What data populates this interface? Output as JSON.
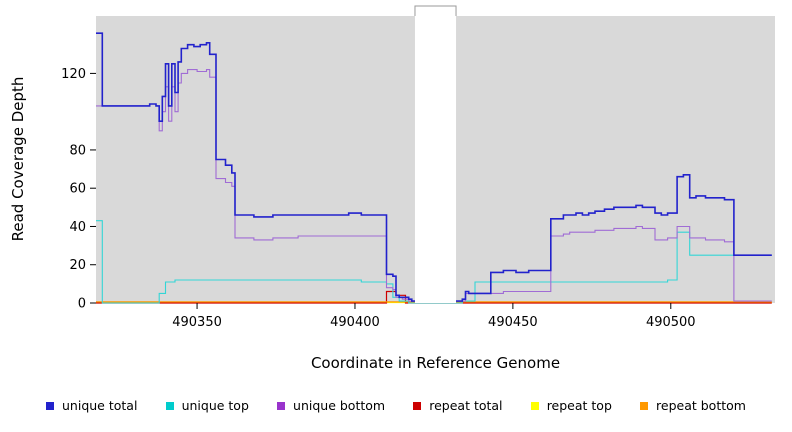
{
  "chart_data": {
    "type": "line",
    "title": "",
    "xlabel": "Coordinate in Reference Genome",
    "ylabel": "Read Coverage Depth",
    "xlim": [
      490318,
      490533
    ],
    "ylim": [
      0,
      150
    ],
    "xticks": [
      490350,
      490400,
      490450,
      490500
    ],
    "yticks": [
      0,
      20,
      40,
      60,
      80,
      120
    ],
    "panel_bg": "#d9d9d9",
    "gap_region": [
      490419,
      490432
    ],
    "grid": false,
    "legend_position": "bottom",
    "series": [
      {
        "name": "repeat top",
        "color": "#ffff00",
        "lw": 1.1,
        "points": [
          [
            490318,
            0.2
          ],
          [
            490532,
            0.2
          ]
        ]
      },
      {
        "name": "repeat total",
        "color": "#cc0000",
        "lw": 1.2,
        "points": [
          [
            490318,
            0
          ],
          [
            490408,
            0
          ],
          [
            490410,
            6
          ],
          [
            490412,
            6
          ],
          [
            490413,
            4
          ],
          [
            490415,
            4
          ],
          [
            490416,
            0
          ],
          [
            490419,
            0
          ],
          [
            490432,
            0
          ],
          [
            490532,
            0
          ]
        ]
      },
      {
        "name": "repeat bottom",
        "color": "#ff9900",
        "lw": 1.2,
        "points": [
          [
            490318,
            0.6
          ],
          [
            490532,
            0.6
          ]
        ]
      },
      {
        "name": "unique top",
        "color": "#33d6d6",
        "lw": 1.1,
        "points": [
          [
            490318,
            43
          ],
          [
            490320,
            0
          ],
          [
            490335,
            0
          ],
          [
            490338,
            5
          ],
          [
            490340,
            11
          ],
          [
            490343,
            12
          ],
          [
            490350,
            12
          ],
          [
            490356,
            12
          ],
          [
            490362,
            12
          ],
          [
            490374,
            12
          ],
          [
            490386,
            12
          ],
          [
            490398,
            12
          ],
          [
            490402,
            11
          ],
          [
            490406,
            11
          ],
          [
            490409,
            11
          ],
          [
            490410,
            10
          ],
          [
            490412,
            3
          ],
          [
            490414,
            1
          ],
          [
            490417,
            0
          ],
          [
            490419,
            0
          ],
          [
            490432,
            0
          ],
          [
            490434,
            1
          ],
          [
            490436,
            1
          ],
          [
            490438,
            11
          ],
          [
            490443,
            11
          ],
          [
            490451,
            11
          ],
          [
            490459,
            11
          ],
          [
            490462,
            11
          ],
          [
            490470,
            11
          ],
          [
            490480,
            11
          ],
          [
            490490,
            11
          ],
          [
            490495,
            11
          ],
          [
            490499,
            12
          ],
          [
            490501,
            12
          ],
          [
            490502,
            37
          ],
          [
            490504,
            37
          ],
          [
            490506,
            25
          ],
          [
            490510,
            25
          ],
          [
            490515,
            25
          ],
          [
            490519,
            25
          ],
          [
            490520,
            25
          ],
          [
            490526,
            25
          ],
          [
            490532,
            25
          ]
        ]
      },
      {
        "name": "unique bottom",
        "color": "#a06cd5",
        "lw": 1.1,
        "points": [
          [
            490318,
            103
          ],
          [
            490320,
            103
          ],
          [
            490335,
            104
          ],
          [
            490337,
            103
          ],
          [
            490338,
            90
          ],
          [
            490339,
            100
          ],
          [
            490340,
            113
          ],
          [
            490341,
            95
          ],
          [
            490342,
            113
          ],
          [
            490343,
            100
          ],
          [
            490344,
            115
          ],
          [
            490345,
            120
          ],
          [
            490347,
            122
          ],
          [
            490350,
            121
          ],
          [
            490353,
            122
          ],
          [
            490354,
            118
          ],
          [
            490356,
            65
          ],
          [
            490359,
            63
          ],
          [
            490361,
            61
          ],
          [
            490362,
            34
          ],
          [
            490368,
            33
          ],
          [
            490374,
            34
          ],
          [
            490382,
            35
          ],
          [
            490392,
            35
          ],
          [
            490398,
            35
          ],
          [
            490406,
            35
          ],
          [
            490409,
            35
          ],
          [
            490410,
            8
          ],
          [
            490412,
            7
          ],
          [
            490413,
            3
          ],
          [
            490415,
            2
          ],
          [
            490417,
            1
          ],
          [
            490419,
            1
          ],
          [
            490432,
            1
          ],
          [
            490434,
            1
          ],
          [
            490435,
            5
          ],
          [
            490438,
            5
          ],
          [
            490443,
            5
          ],
          [
            490447,
            6
          ],
          [
            490455,
            6
          ],
          [
            490459,
            6
          ],
          [
            490462,
            35
          ],
          [
            490464,
            35
          ],
          [
            490466,
            36
          ],
          [
            490468,
            37
          ],
          [
            490470,
            37
          ],
          [
            490473,
            37
          ],
          [
            490476,
            38
          ],
          [
            490479,
            38
          ],
          [
            490482,
            39
          ],
          [
            490486,
            39
          ],
          [
            490489,
            40
          ],
          [
            490491,
            39
          ],
          [
            490493,
            39
          ],
          [
            490495,
            33
          ],
          [
            490497,
            33
          ],
          [
            490499,
            34
          ],
          [
            490501,
            34
          ],
          [
            490502,
            40
          ],
          [
            490504,
            40
          ],
          [
            490506,
            34
          ],
          [
            490508,
            34
          ],
          [
            490511,
            33
          ],
          [
            490514,
            33
          ],
          [
            490517,
            32
          ],
          [
            490519,
            32
          ],
          [
            490520,
            1
          ],
          [
            490526,
            1
          ],
          [
            490532,
            1
          ]
        ]
      },
      {
        "name": "unique total",
        "color": "#2222cc",
        "lw": 1.6,
        "points": [
          [
            490318,
            141
          ],
          [
            490320,
            103
          ],
          [
            490335,
            104
          ],
          [
            490337,
            103
          ],
          [
            490338,
            95
          ],
          [
            490339,
            108
          ],
          [
            490340,
            125
          ],
          [
            490341,
            103
          ],
          [
            490342,
            125
          ],
          [
            490343,
            110
          ],
          [
            490344,
            126
          ],
          [
            490345,
            133
          ],
          [
            490347,
            135
          ],
          [
            490349,
            134
          ],
          [
            490351,
            135
          ],
          [
            490353,
            136
          ],
          [
            490354,
            130
          ],
          [
            490356,
            75
          ],
          [
            490359,
            72
          ],
          [
            490361,
            68
          ],
          [
            490362,
            46
          ],
          [
            490368,
            45
          ],
          [
            490374,
            46
          ],
          [
            490382,
            46
          ],
          [
            490392,
            46
          ],
          [
            490398,
            47
          ],
          [
            490402,
            46
          ],
          [
            490406,
            46
          ],
          [
            490409,
            46
          ],
          [
            490410,
            15
          ],
          [
            490412,
            14
          ],
          [
            490413,
            4
          ],
          [
            490414,
            3
          ],
          [
            490416,
            3
          ],
          [
            490417,
            2
          ],
          [
            490418,
            1
          ],
          [
            490419,
            1
          ],
          [
            490432,
            1
          ],
          [
            490433,
            1
          ],
          [
            490434,
            2
          ],
          [
            490435,
            6
          ],
          [
            490436,
            5
          ],
          [
            490438,
            5
          ],
          [
            490443,
            16
          ],
          [
            490447,
            17
          ],
          [
            490451,
            16
          ],
          [
            490455,
            17
          ],
          [
            490459,
            17
          ],
          [
            490462,
            44
          ],
          [
            490464,
            44
          ],
          [
            490466,
            46
          ],
          [
            490468,
            46
          ],
          [
            490470,
            47
          ],
          [
            490472,
            46
          ],
          [
            490474,
            47
          ],
          [
            490476,
            48
          ],
          [
            490479,
            49
          ],
          [
            490482,
            50
          ],
          [
            490486,
            50
          ],
          [
            490489,
            51
          ],
          [
            490491,
            50
          ],
          [
            490493,
            50
          ],
          [
            490495,
            47
          ],
          [
            490497,
            46
          ],
          [
            490499,
            47
          ],
          [
            490501,
            47
          ],
          [
            490502,
            66
          ],
          [
            490504,
            67
          ],
          [
            490506,
            55
          ],
          [
            490508,
            56
          ],
          [
            490511,
            55
          ],
          [
            490514,
            55
          ],
          [
            490517,
            54
          ],
          [
            490519,
            54
          ],
          [
            490520,
            25
          ],
          [
            490526,
            25
          ],
          [
            490532,
            25
          ]
        ]
      }
    ]
  },
  "legend": {
    "items": [
      {
        "label": "unique total",
        "color": "#2222cc"
      },
      {
        "label": "unique top",
        "color": "#00cccc"
      },
      {
        "label": "unique bottom",
        "color": "#9933cc"
      },
      {
        "label": "repeat total",
        "color": "#cc0000"
      },
      {
        "label": "repeat top",
        "color": "#ffff00"
      },
      {
        "label": "repeat bottom",
        "color": "#ff9900"
      }
    ]
  }
}
